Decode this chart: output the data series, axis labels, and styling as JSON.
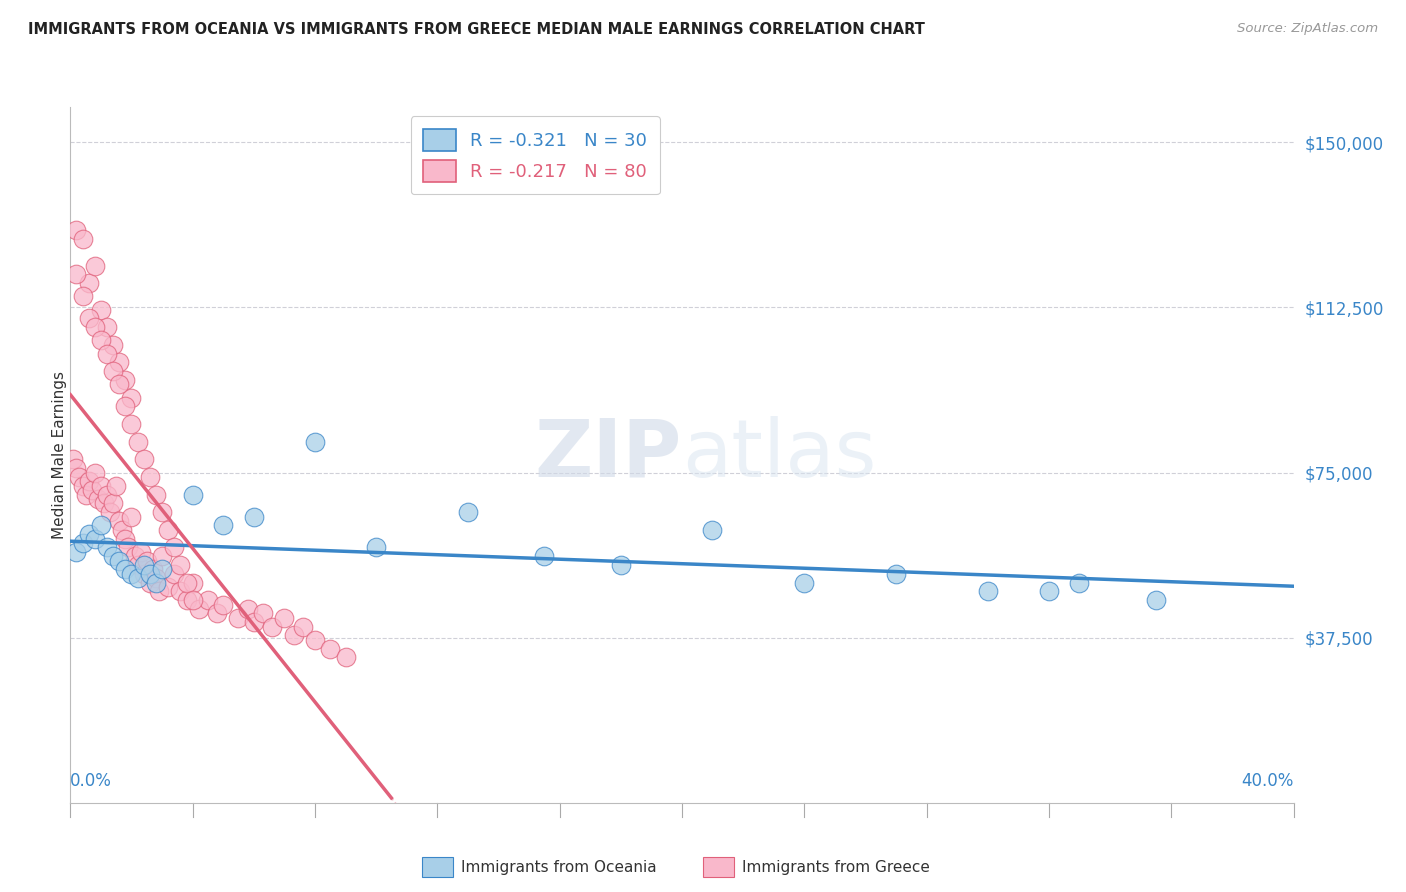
{
  "title": "IMMIGRANTS FROM OCEANIA VS IMMIGRANTS FROM GREECE MEDIAN MALE EARNINGS CORRELATION CHART",
  "source": "Source: ZipAtlas.com",
  "ylabel": "Median Male Earnings",
  "y_ticks": [
    0,
    37500,
    75000,
    112500,
    150000
  ],
  "y_tick_labels": [
    "",
    "$37,500",
    "$75,000",
    "$112,500",
    "$150,000"
  ],
  "x_lim": [
    0.0,
    0.4
  ],
  "y_lim": [
    15000,
    158000
  ],
  "legend_oceania": "R = -0.321   N = 30",
  "legend_greece": "R = -0.217   N = 80",
  "oceania_color": "#a8cfe8",
  "greece_color": "#f9b8cb",
  "oceania_line_color": "#3a86c8",
  "greece_line_color": "#e0607a",
  "watermark_zip": "ZIP",
  "watermark_atlas": "atlas",
  "oceania_x": [
    0.002,
    0.004,
    0.006,
    0.008,
    0.01,
    0.012,
    0.014,
    0.016,
    0.018,
    0.02,
    0.022,
    0.024,
    0.026,
    0.028,
    0.03,
    0.04,
    0.05,
    0.06,
    0.08,
    0.1,
    0.13,
    0.155,
    0.18,
    0.21,
    0.24,
    0.27,
    0.3,
    0.33,
    0.355,
    0.32
  ],
  "oceania_y": [
    57000,
    59000,
    61000,
    60000,
    63000,
    58000,
    56000,
    55000,
    53000,
    52000,
    51000,
    54000,
    52000,
    50000,
    53000,
    70000,
    63000,
    65000,
    82000,
    58000,
    66000,
    56000,
    54000,
    62000,
    50000,
    52000,
    48000,
    50000,
    46000,
    48000
  ],
  "greece_x": [
    0.001,
    0.002,
    0.003,
    0.004,
    0.005,
    0.006,
    0.007,
    0.008,
    0.009,
    0.01,
    0.011,
    0.012,
    0.013,
    0.014,
    0.015,
    0.016,
    0.017,
    0.018,
    0.019,
    0.02,
    0.021,
    0.022,
    0.023,
    0.024,
    0.025,
    0.026,
    0.027,
    0.028,
    0.029,
    0.03,
    0.032,
    0.034,
    0.036,
    0.038,
    0.04,
    0.042,
    0.045,
    0.048,
    0.05,
    0.055,
    0.058,
    0.06,
    0.063,
    0.066,
    0.07,
    0.073,
    0.076,
    0.08,
    0.085,
    0.09,
    0.002,
    0.004,
    0.006,
    0.008,
    0.01,
    0.012,
    0.014,
    0.016,
    0.018,
    0.02,
    0.002,
    0.004,
    0.006,
    0.008,
    0.01,
    0.012,
    0.014,
    0.016,
    0.018,
    0.02,
    0.022,
    0.024,
    0.026,
    0.028,
    0.03,
    0.032,
    0.034,
    0.036,
    0.038,
    0.04
  ],
  "greece_y": [
    78000,
    76000,
    74000,
    72000,
    70000,
    73000,
    71000,
    75000,
    69000,
    72000,
    68000,
    70000,
    66000,
    68000,
    72000,
    64000,
    62000,
    60000,
    58000,
    65000,
    56000,
    54000,
    57000,
    52000,
    55000,
    50000,
    53000,
    51000,
    48000,
    56000,
    49000,
    52000,
    48000,
    46000,
    50000,
    44000,
    46000,
    43000,
    45000,
    42000,
    44000,
    41000,
    43000,
    40000,
    42000,
    38000,
    40000,
    37000,
    35000,
    33000,
    130000,
    128000,
    118000,
    122000,
    112000,
    108000,
    104000,
    100000,
    96000,
    92000,
    120000,
    115000,
    110000,
    108000,
    105000,
    102000,
    98000,
    95000,
    90000,
    86000,
    82000,
    78000,
    74000,
    70000,
    66000,
    62000,
    58000,
    54000,
    50000,
    46000
  ]
}
